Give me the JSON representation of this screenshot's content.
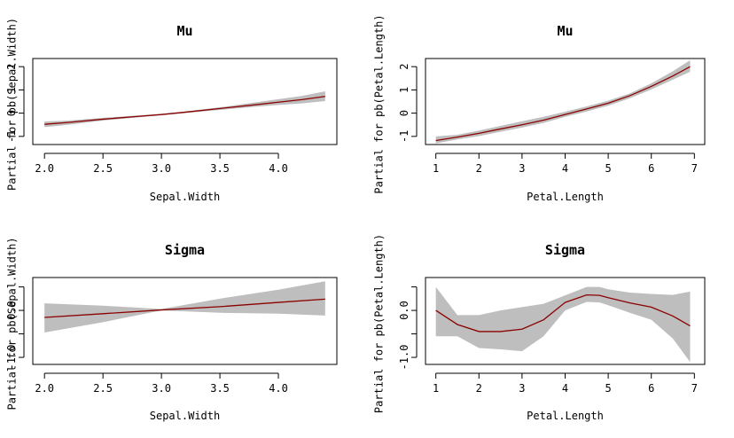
{
  "chart_data": [
    {
      "type": "line",
      "title": "Mu",
      "xlabel": "Sepal.Width",
      "ylabel": "Partial for pb(Sepal.Width)",
      "xlim": [
        1.9,
        4.5
      ],
      "ylim": [
        -1.35,
        2.35
      ],
      "xticks": [
        2.0,
        2.5,
        3.0,
        3.5,
        4.0
      ],
      "xtick_labels": [
        "2.0",
        "2.5",
        "3.0",
        "3.5",
        "4.0"
      ],
      "yticks": [
        -1,
        0,
        1,
        2
      ],
      "ytick_labels": [
        "-1",
        "0",
        "1",
        "2"
      ],
      "series": [
        {
          "name": "fit",
          "color": "#8b0000",
          "x": [
            2.0,
            2.2,
            2.5,
            2.8,
            3.0,
            3.2,
            3.5,
            3.8,
            4.0,
            4.2,
            4.4
          ],
          "y": [
            -0.48,
            -0.4,
            -0.26,
            -0.14,
            -0.06,
            0.04,
            0.2,
            0.36,
            0.47,
            0.58,
            0.72
          ]
        },
        {
          "name": "band_upper",
          "color": "#bebebe",
          "x": [
            2.0,
            2.2,
            2.5,
            2.8,
            3.0,
            3.2,
            3.5,
            3.8,
            4.0,
            4.2,
            4.4
          ],
          "y": [
            -0.36,
            -0.32,
            -0.2,
            -0.1,
            -0.03,
            0.07,
            0.25,
            0.46,
            0.6,
            0.74,
            0.94
          ]
        },
        {
          "name": "band_lower",
          "color": "#bebebe",
          "x": [
            2.0,
            2.2,
            2.5,
            2.8,
            3.0,
            3.2,
            3.5,
            3.8,
            4.0,
            4.2,
            4.4
          ],
          "y": [
            -0.6,
            -0.5,
            -0.32,
            -0.18,
            -0.09,
            0.0,
            0.14,
            0.27,
            0.35,
            0.42,
            0.52
          ]
        }
      ]
    },
    {
      "type": "line",
      "title": "Mu",
      "xlabel": "Petal.Length",
      "ylabel": "Partial for pb(Petal.Length)",
      "xlim": [
        0.76,
        7.24
      ],
      "ylim": [
        -1.35,
        2.35
      ],
      "xticks": [
        1,
        2,
        3,
        4,
        5,
        6,
        7
      ],
      "xtick_labels": [
        "1",
        "2",
        "3",
        "4",
        "5",
        "6",
        "7"
      ],
      "yticks": [
        -1,
        0,
        1,
        2
      ],
      "ytick_labels": [
        "-1",
        "0",
        "1",
        "2"
      ],
      "series": [
        {
          "name": "fit",
          "color": "#8b0000",
          "x": [
            1.0,
            1.5,
            2.0,
            2.5,
            3.0,
            3.5,
            4.0,
            4.5,
            5.0,
            5.5,
            6.0,
            6.5,
            6.9
          ],
          "y": [
            -1.18,
            -1.03,
            -0.87,
            -0.68,
            -0.5,
            -0.3,
            -0.06,
            0.18,
            0.43,
            0.75,
            1.15,
            1.6,
            2.0
          ]
        },
        {
          "name": "band_upper",
          "color": "#bebebe",
          "x": [
            1.0,
            1.5,
            2.0,
            2.5,
            3.0,
            3.5,
            4.0,
            4.5,
            5.0,
            5.5,
            6.0,
            6.5,
            6.9
          ],
          "y": [
            -1.0,
            -0.93,
            -0.75,
            -0.55,
            -0.35,
            -0.16,
            0.06,
            0.29,
            0.54,
            0.85,
            1.28,
            1.8,
            2.28
          ]
        },
        {
          "name": "band_lower",
          "color": "#bebebe",
          "x": [
            1.0,
            1.5,
            2.0,
            2.5,
            3.0,
            3.5,
            4.0,
            4.5,
            5.0,
            5.5,
            6.0,
            6.5,
            6.9
          ],
          "y": [
            -1.3,
            -1.13,
            -0.99,
            -0.8,
            -0.62,
            -0.42,
            -0.16,
            0.07,
            0.32,
            0.64,
            1.02,
            1.44,
            1.78
          ]
        }
      ]
    },
    {
      "type": "line",
      "title": "Sigma",
      "xlabel": "Sepal.Width",
      "ylabel": "Partial for pb(Sepal.Width)",
      "xlim": [
        1.9,
        4.5
      ],
      "ylim": [
        -1.15,
        0.7
      ],
      "xticks": [
        2.0,
        2.5,
        3.0,
        3.5,
        4.0
      ],
      "xtick_labels": [
        "2.0",
        "2.5",
        "3.0",
        "3.5",
        "4.0"
      ],
      "yticks": [
        -1.0,
        -0.5,
        0.0,
        0.5
      ],
      "ytick_labels": [
        "-1.0",
        "",
        "0.0",
        ""
      ],
      "series": [
        {
          "name": "fit",
          "color": "#8b0000",
          "x": [
            2.0,
            2.5,
            3.0,
            3.5,
            4.0,
            4.4
          ],
          "y": [
            -0.15,
            -0.07,
            0.01,
            0.08,
            0.17,
            0.24
          ]
        },
        {
          "name": "band_upper",
          "color": "#bebebe",
          "x": [
            2.0,
            2.5,
            3.0,
            3.5,
            4.0,
            4.4
          ],
          "y": [
            0.15,
            0.1,
            0.03,
            0.25,
            0.44,
            0.62
          ]
        },
        {
          "name": "band_lower",
          "color": "#bebebe",
          "x": [
            2.0,
            2.5,
            3.0,
            3.5,
            4.0,
            4.4
          ],
          "y": [
            -0.47,
            -0.25,
            0.0,
            -0.05,
            -0.07,
            -0.11
          ]
        }
      ]
    },
    {
      "type": "line",
      "title": "Sigma",
      "xlabel": "Petal.Length",
      "ylabel": "Partial for pb(Petal.Length)",
      "xlim": [
        0.76,
        7.24
      ],
      "ylim": [
        -1.15,
        0.7
      ],
      "xticks": [
        1,
        2,
        3,
        4,
        5,
        6,
        7
      ],
      "xtick_labels": [
        "1",
        "2",
        "3",
        "4",
        "5",
        "6",
        "7"
      ],
      "yticks": [
        -1.0,
        -0.5,
        0.0,
        0.5
      ],
      "ytick_labels": [
        "-1.0",
        "",
        "0.0",
        ""
      ],
      "series": [
        {
          "name": "fit",
          "color": "#8b0000",
          "x": [
            1.0,
            1.5,
            2.0,
            2.5,
            3.0,
            3.5,
            4.0,
            4.5,
            4.8,
            5.0,
            5.5,
            6.0,
            6.5,
            6.9
          ],
          "y": [
            0.0,
            -0.3,
            -0.45,
            -0.45,
            -0.4,
            -0.2,
            0.17,
            0.33,
            0.32,
            0.27,
            0.16,
            0.07,
            -0.12,
            -0.33
          ]
        },
        {
          "name": "band_upper",
          "color": "#bebebe",
          "x": [
            1.0,
            1.5,
            2.0,
            2.5,
            3.0,
            3.5,
            4.0,
            4.5,
            4.8,
            5.0,
            5.5,
            6.0,
            6.5,
            6.9
          ],
          "y": [
            0.5,
            -0.1,
            -0.1,
            0.0,
            0.07,
            0.14,
            0.32,
            0.5,
            0.5,
            0.45,
            0.38,
            0.35,
            0.33,
            0.4
          ]
        },
        {
          "name": "band_lower",
          "color": "#bebebe",
          "x": [
            1.0,
            1.5,
            2.0,
            2.5,
            3.0,
            3.5,
            4.0,
            4.5,
            4.8,
            5.0,
            5.5,
            6.0,
            6.5,
            6.9
          ],
          "y": [
            -0.55,
            -0.55,
            -0.8,
            -0.83,
            -0.87,
            -0.55,
            0.0,
            0.18,
            0.17,
            0.11,
            -0.05,
            -0.2,
            -0.6,
            -1.1
          ]
        }
      ]
    }
  ]
}
